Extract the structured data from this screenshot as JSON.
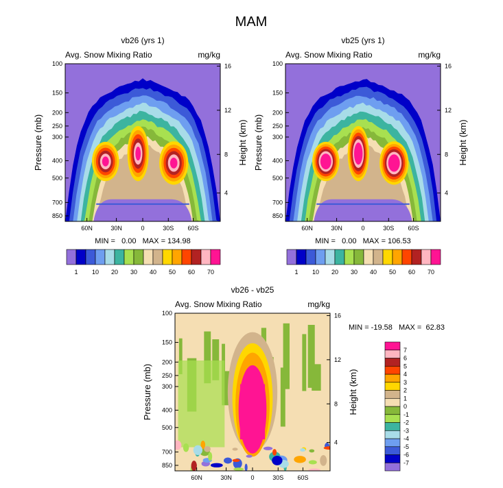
{
  "page_title": "MAM",
  "chart_data": [
    {
      "type": "heatmap",
      "title": "vb26 (yrs 1)",
      "subtitle_left": "Avg. Snow Mixing Ratio",
      "subtitle_right": "mg/kg",
      "ylabel": "Pressure (mb)",
      "ylabel_right": "Height (km)",
      "x_ticks": [
        "60N",
        "30N",
        "0",
        "30S",
        "60S"
      ],
      "y_ticks": [
        "100",
        "150",
        "200",
        "250",
        "300",
        "400",
        "500",
        "700",
        "850"
      ],
      "y_right_ticks": [
        "16",
        "12",
        "8",
        "4"
      ],
      "stats": "MIN =   0.00   MAX = 134.98",
      "min": 0.0,
      "max": 134.98,
      "peak_scale": 1.0,
      "colorbar": {
        "orientation": "horizontal",
        "labels": [
          "1",
          "10",
          "20",
          "30",
          "40",
          "50",
          "60",
          "70"
        ],
        "colors": [
          "#9370db",
          "#0000c8",
          "#3c5ad8",
          "#6e9ef0",
          "#a8dce8",
          "#3cb4a0",
          "#a8e050",
          "#86b83a",
          "#f5deb3",
          "#d2b48c",
          "#ffd700",
          "#ffa500",
          "#ff4500",
          "#b22222",
          "#ffb6c1",
          "#ff1493"
        ]
      }
    },
    {
      "type": "heatmap",
      "title": "vb25 (yrs 1)",
      "subtitle_left": "Avg. Snow Mixing Ratio",
      "subtitle_right": "mg/kg",
      "ylabel": "Pressure (mb)",
      "ylabel_right": "Height (km)",
      "x_ticks": [
        "60N",
        "30N",
        "0",
        "30S",
        "60S"
      ],
      "y_ticks": [
        "100",
        "150",
        "200",
        "250",
        "300",
        "400",
        "500",
        "700",
        "850"
      ],
      "y_right_ticks": [
        "16",
        "12",
        "8",
        "4"
      ],
      "stats": "MIN =   0.00   MAX = 106.53",
      "min": 0.0,
      "max": 106.53,
      "peak_scale": 0.8,
      "colorbar": {
        "orientation": "horizontal",
        "labels": [
          "1",
          "10",
          "20",
          "30",
          "40",
          "50",
          "60",
          "70"
        ],
        "colors": [
          "#9370db",
          "#0000c8",
          "#3c5ad8",
          "#6e9ef0",
          "#a8dce8",
          "#3cb4a0",
          "#a8e050",
          "#86b83a",
          "#f5deb3",
          "#d2b48c",
          "#ffd700",
          "#ffa500",
          "#ff4500",
          "#b22222",
          "#ffb6c1",
          "#ff1493"
        ]
      }
    },
    {
      "type": "heatmap",
      "title": "vb26 - vb25",
      "subtitle_left": "Avg. Snow Mixing Ratio",
      "subtitle_right": "mg/kg",
      "ylabel": "Pressure (mb)",
      "ylabel_right": "Height (km)",
      "x_ticks": [
        "60N",
        "30N",
        "0",
        "30S",
        "60S"
      ],
      "y_ticks": [
        "100",
        "150",
        "200",
        "250",
        "300",
        "400",
        "500",
        "700",
        "850"
      ],
      "y_right_ticks": [
        "16",
        "12",
        "8",
        "4"
      ],
      "stats": "MIN = -19.58   MAX =  62.83",
      "min": -19.58,
      "max": 62.83,
      "colorbar": {
        "orientation": "vertical",
        "labels": [
          "-7",
          "-6",
          "-5",
          "-4",
          "-3",
          "-2",
          "-1",
          "0",
          "1",
          "2",
          "3",
          "4",
          "5",
          "6",
          "7"
        ],
        "colors": [
          "#9370db",
          "#0000c8",
          "#3c5ad8",
          "#6e9ef0",
          "#a8dce8",
          "#3cb4a0",
          "#a8e050",
          "#86b83a",
          "#f5deb3",
          "#d2b48c",
          "#ffd700",
          "#ffa500",
          "#ff4500",
          "#b22222",
          "#ffb6c1",
          "#ff1493"
        ]
      }
    }
  ]
}
